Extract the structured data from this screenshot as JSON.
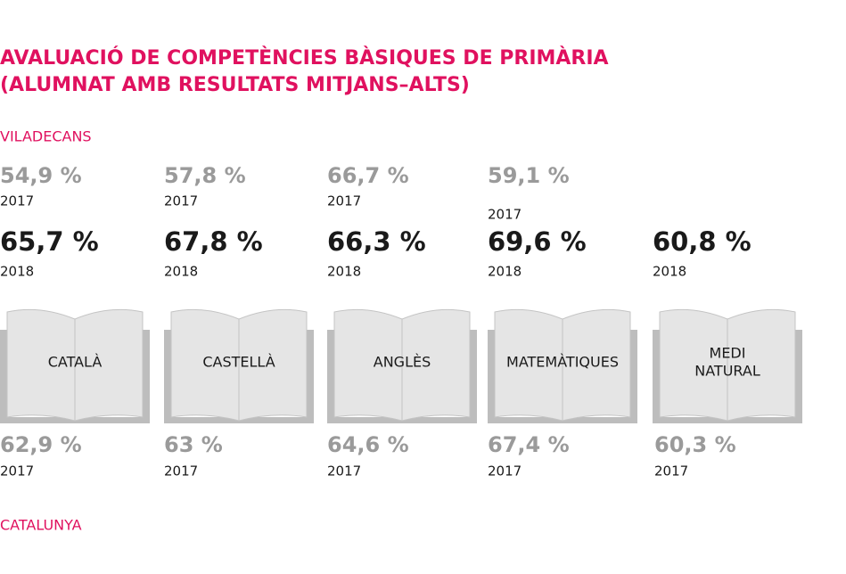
{
  "title": [
    "AVALUACIÓ DE COMPETÈNCIES BÀSIQUES DE PRIMÀRIA",
    "(ALUMNAT AMB RESULTATS MITJANS–ALTS)"
  ],
  "sections": {
    "top": "VILADECANS",
    "bottom": "CATALUNYA"
  },
  "subjects": [
    {
      "name": [
        "CATALÀ"
      ],
      "top_2017": {
        "value": "54,9 %",
        "year": "2017"
      },
      "top_2018": {
        "value": "65,7 %",
        "year": "2018"
      },
      "bottom_2017": {
        "value": "62,9 %",
        "year": "2017"
      }
    },
    {
      "name": [
        "CASTELLÀ"
      ],
      "top_2017": {
        "value": "57,8 %",
        "year": "2017"
      },
      "top_2018": {
        "value": "67,8 %",
        "year": "2018"
      },
      "bottom_2017": {
        "value": "63 %",
        "year": "2017"
      }
    },
    {
      "name": [
        "ANGLÈS"
      ],
      "top_2017": {
        "value": "66,7 %",
        "year": "2017"
      },
      "top_2018": {
        "value": "66,3 %",
        "year": "2018"
      },
      "bottom_2017": {
        "value": "64,6 %",
        "year": "2017"
      }
    },
    {
      "name": [
        "MATEMÀTIQUES"
      ],
      "top_2017": {
        "value": "59,1 %",
        "year": "2017"
      },
      "top_2018": {
        "value": "69,6 %",
        "year": "2018"
      },
      "bottom_2017": {
        "value": "67,4 %",
        "year": "2017"
      }
    },
    {
      "name": [
        "MEDI",
        "NATURAL"
      ],
      "top_2018": {
        "value": "60,8 %",
        "year": "2018"
      },
      "bottom_2017": {
        "value": "60,3 %",
        "year": "2017"
      }
    }
  ]
}
